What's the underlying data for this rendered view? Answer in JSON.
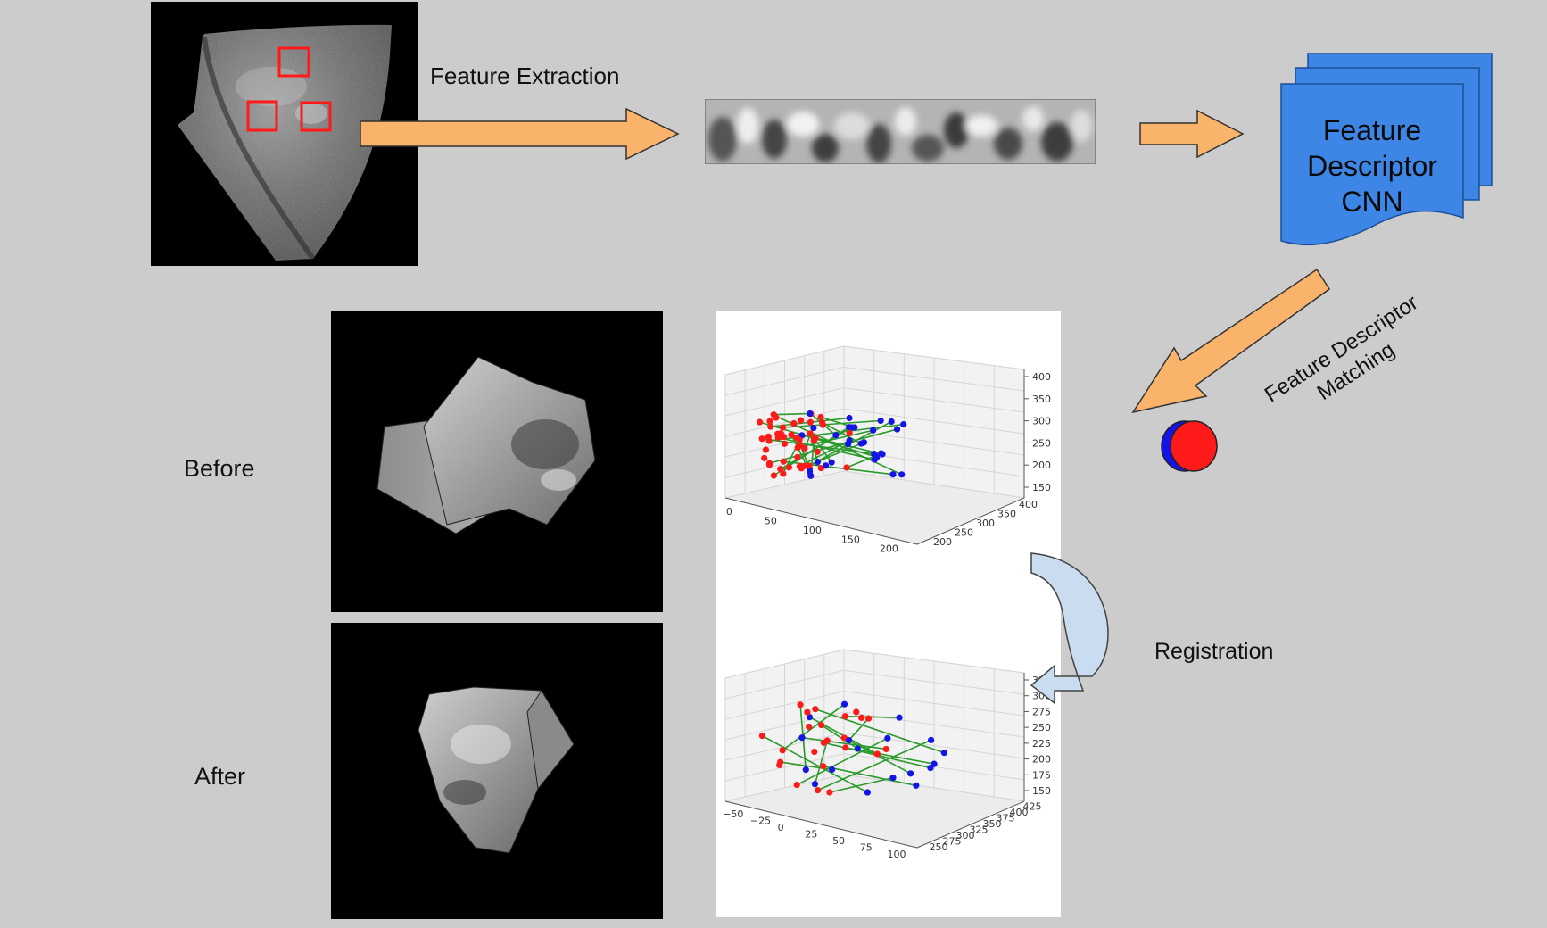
{
  "labels": {
    "feature_extraction": "Feature Extraction",
    "cnn_line1": "Feature",
    "cnn_line2": "Descriptor",
    "cnn_line3": "CNN",
    "matching_line1": "Feature Descriptor",
    "matching_line2": "Matching",
    "before": "Before",
    "after": "After",
    "registration": "Registration"
  },
  "colors": {
    "background": "#cccccc",
    "arrow_fill": "#f9b36b",
    "cnn_blue": "#3d86e6",
    "curved_arrow": "#c9dcf0",
    "point_red": "#ff1a1a",
    "point_blue": "#1414e6",
    "match_line": "#2a9a2a",
    "roi_box": "#ff1a1a"
  },
  "chart_data": [
    {
      "type": "scatter",
      "projection": "3d",
      "panel": "before",
      "z_ticks": [
        "400",
        "350",
        "300",
        "250",
        "200",
        "150"
      ],
      "y_ticks": [
        "400",
        "350",
        "300",
        "250",
        "200"
      ],
      "x_ticks": [
        "0",
        "50",
        "100",
        "150",
        "200"
      ],
      "series": [
        {
          "color": "red"
        },
        {
          "color": "blue"
        }
      ]
    },
    {
      "type": "scatter",
      "projection": "3d",
      "panel": "after",
      "z_ticks": [
        "325",
        "300",
        "275",
        "250",
        "225",
        "200",
        "175",
        "150"
      ],
      "y_ticks": [
        "425",
        "400",
        "375",
        "350",
        "325",
        "300",
        "275",
        "250"
      ],
      "x_ticks": [
        "−50",
        "−25",
        "0",
        "25",
        "50",
        "75",
        "100"
      ],
      "series": [
        {
          "color": "red"
        },
        {
          "color": "blue"
        }
      ]
    }
  ]
}
